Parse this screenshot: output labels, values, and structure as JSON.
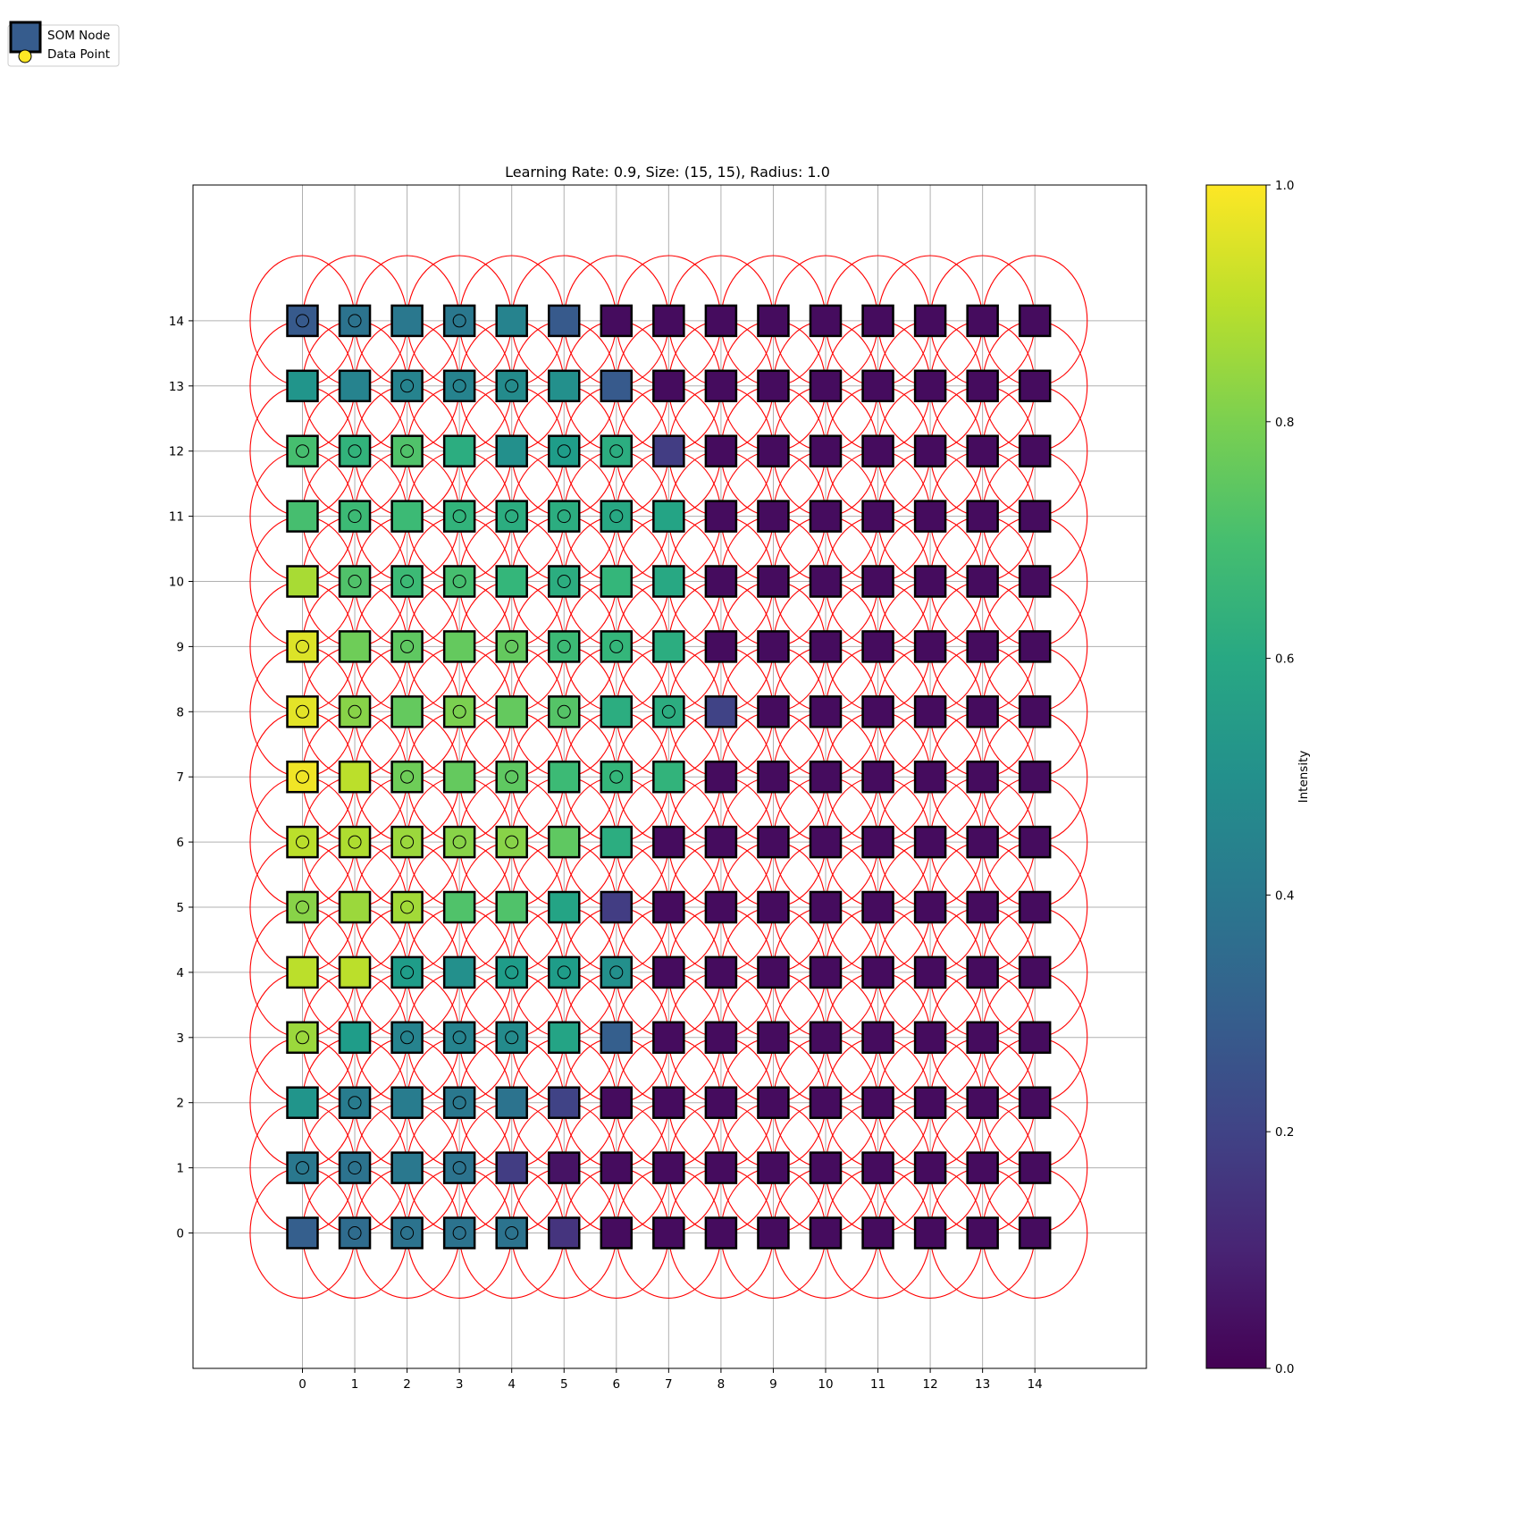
{
  "chart_data": {
    "type": "heatmap",
    "title": "Learning Rate: 0.9, Size: (15, 15), Radius: 1.0",
    "xlabel": "",
    "ylabel": "",
    "grid_size": [
      15,
      15
    ],
    "radius": 1.0,
    "xlim": [
      -2.1,
      16.1
    ],
    "ylim": [
      -2.1,
      16.1
    ],
    "x_ticks": [
      "0",
      "1",
      "2",
      "3",
      "4",
      "5",
      "6",
      "7",
      "8",
      "9",
      "10",
      "11",
      "12",
      "13",
      "14"
    ],
    "y_ticks": [
      "0",
      "1",
      "2",
      "3",
      "4",
      "5",
      "6",
      "7",
      "8",
      "9",
      "10",
      "11",
      "12",
      "13",
      "14"
    ],
    "grid": true,
    "colormap": "viridis",
    "colorbar": {
      "label": "Intensity",
      "range": [
        0,
        1
      ],
      "ticks": [
        "0.0",
        "0.2",
        "0.4",
        "0.6",
        "0.8",
        "1.0"
      ]
    },
    "legend": {
      "placement": "top-left",
      "entries": [
        {
          "label": "SOM Node",
          "marker": "square",
          "color": "#365c8d"
        },
        {
          "label": "Data Point",
          "marker": "circle",
          "color": "#fde725"
        }
      ]
    },
    "neighborhood_circle_color": "#ff0000",
    "node_intensity_rows_top_to_bottom": [
      [
        0.28,
        0.38,
        0.4,
        0.4,
        0.45,
        0.28,
        0.03,
        0.03,
        0.03,
        0.03,
        0.03,
        0.03,
        0.03,
        0.03,
        0.03
      ],
      [
        0.52,
        0.45,
        0.45,
        0.45,
        0.48,
        0.5,
        0.28,
        0.03,
        0.03,
        0.03,
        0.03,
        0.03,
        0.03,
        0.03,
        0.03
      ],
      [
        0.7,
        0.65,
        0.72,
        0.62,
        0.5,
        0.55,
        0.62,
        0.18,
        0.03,
        0.03,
        0.03,
        0.03,
        0.03,
        0.03,
        0.03
      ],
      [
        0.7,
        0.68,
        0.68,
        0.65,
        0.62,
        0.62,
        0.6,
        0.58,
        0.03,
        0.03,
        0.03,
        0.03,
        0.03,
        0.03,
        0.03
      ],
      [
        0.87,
        0.72,
        0.68,
        0.7,
        0.66,
        0.62,
        0.66,
        0.6,
        0.03,
        0.03,
        0.03,
        0.03,
        0.03,
        0.03,
        0.03
      ],
      [
        0.95,
        0.78,
        0.75,
        0.76,
        0.76,
        0.68,
        0.66,
        0.62,
        0.03,
        0.03,
        0.03,
        0.03,
        0.03,
        0.03,
        0.03
      ],
      [
        0.96,
        0.82,
        0.76,
        0.8,
        0.76,
        0.73,
        0.62,
        0.62,
        0.2,
        0.03,
        0.03,
        0.03,
        0.03,
        0.03,
        0.03
      ],
      [
        0.98,
        0.9,
        0.78,
        0.76,
        0.75,
        0.68,
        0.66,
        0.65,
        0.03,
        0.03,
        0.03,
        0.03,
        0.03,
        0.03,
        0.03
      ],
      [
        0.9,
        0.88,
        0.85,
        0.82,
        0.82,
        0.75,
        0.62,
        0.03,
        0.03,
        0.03,
        0.03,
        0.03,
        0.03,
        0.03,
        0.03
      ],
      [
        0.82,
        0.85,
        0.86,
        0.72,
        0.72,
        0.58,
        0.18,
        0.03,
        0.03,
        0.03,
        0.03,
        0.03,
        0.03,
        0.03,
        0.03
      ],
      [
        0.9,
        0.9,
        0.55,
        0.5,
        0.55,
        0.55,
        0.5,
        0.03,
        0.03,
        0.03,
        0.03,
        0.03,
        0.03,
        0.03,
        0.03
      ],
      [
        0.85,
        0.55,
        0.45,
        0.45,
        0.48,
        0.58,
        0.3,
        0.03,
        0.03,
        0.03,
        0.03,
        0.03,
        0.03,
        0.03,
        0.03
      ],
      [
        0.52,
        0.42,
        0.42,
        0.4,
        0.38,
        0.2,
        0.03,
        0.03,
        0.03,
        0.03,
        0.03,
        0.03,
        0.03,
        0.03,
        0.03
      ],
      [
        0.4,
        0.38,
        0.4,
        0.38,
        0.18,
        0.05,
        0.03,
        0.03,
        0.03,
        0.03,
        0.03,
        0.03,
        0.03,
        0.03,
        0.03
      ],
      [
        0.3,
        0.35,
        0.38,
        0.38,
        0.38,
        0.15,
        0.03,
        0.03,
        0.03,
        0.03,
        0.03,
        0.03,
        0.03,
        0.03,
        0.03
      ]
    ],
    "data_point_mask_rows_top_to_bottom": [
      [
        1,
        1,
        0,
        1,
        0,
        0,
        0,
        0,
        0,
        0,
        0,
        0,
        0,
        0,
        0
      ],
      [
        0,
        0,
        1,
        1,
        1,
        0,
        0,
        0,
        0,
        0,
        0,
        0,
        0,
        0,
        0
      ],
      [
        1,
        1,
        1,
        0,
        0,
        1,
        1,
        0,
        0,
        0,
        0,
        0,
        0,
        0,
        0
      ],
      [
        0,
        1,
        0,
        1,
        1,
        1,
        1,
        0,
        0,
        0,
        0,
        0,
        0,
        0,
        0
      ],
      [
        0,
        1,
        1,
        1,
        0,
        1,
        0,
        0,
        0,
        0,
        0,
        0,
        0,
        0,
        0
      ],
      [
        1,
        0,
        1,
        0,
        1,
        1,
        1,
        0,
        0,
        0,
        0,
        0,
        0,
        0,
        0
      ],
      [
        1,
        1,
        0,
        1,
        0,
        1,
        0,
        1,
        0,
        0,
        0,
        0,
        0,
        0,
        0
      ],
      [
        1,
        0,
        1,
        0,
        1,
        0,
        1,
        0,
        0,
        0,
        0,
        0,
        0,
        0,
        0
      ],
      [
        1,
        1,
        1,
        1,
        1,
        0,
        0,
        0,
        0,
        0,
        0,
        0,
        0,
        0,
        0
      ],
      [
        1,
        0,
        1,
        0,
        0,
        0,
        0,
        0,
        0,
        0,
        0,
        0,
        0,
        0,
        0
      ],
      [
        0,
        0,
        1,
        0,
        1,
        1,
        1,
        0,
        0,
        0,
        0,
        0,
        0,
        0,
        0
      ],
      [
        1,
        0,
        1,
        1,
        1,
        0,
        0,
        0,
        0,
        0,
        0,
        0,
        0,
        0,
        0
      ],
      [
        0,
        1,
        0,
        1,
        0,
        0,
        0,
        0,
        0,
        0,
        0,
        0,
        0,
        0,
        0
      ],
      [
        1,
        1,
        0,
        1,
        0,
        0,
        0,
        0,
        0,
        0,
        0,
        0,
        0,
        0,
        0
      ],
      [
        0,
        1,
        1,
        1,
        1,
        0,
        0,
        0,
        0,
        0,
        0,
        0,
        0,
        0,
        0
      ]
    ]
  }
}
